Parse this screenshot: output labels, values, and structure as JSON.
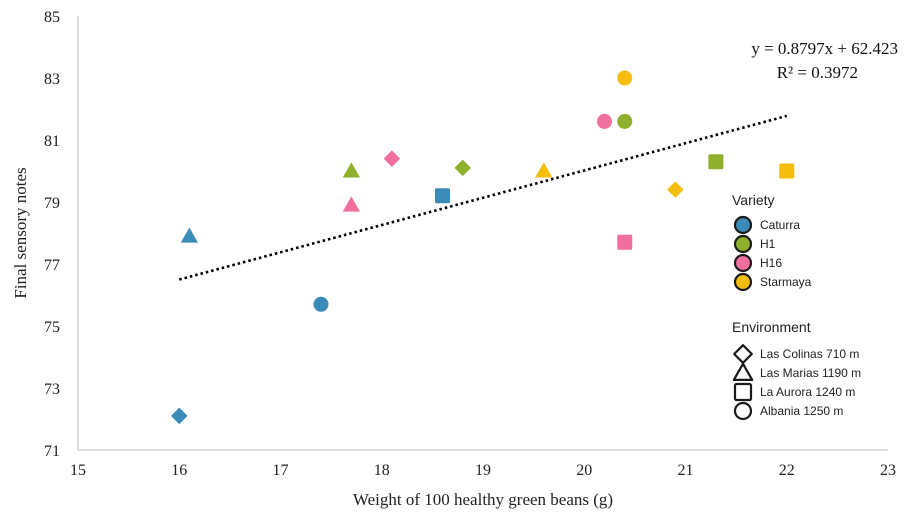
{
  "chart_data": {
    "type": "scatter",
    "xlabel": "Weight of 100 healthy green beans (g)",
    "ylabel": "Final sensory notes",
    "xlim": [
      15,
      23
    ],
    "ylim": [
      71,
      85
    ],
    "xticks": [
      15,
      16,
      17,
      18,
      19,
      20,
      21,
      22,
      23
    ],
    "yticks": [
      71,
      73,
      75,
      77,
      79,
      81,
      83,
      85
    ],
    "grid": false,
    "trendline": {
      "style": "dotted",
      "slope": 0.8797,
      "intercept": 62.423,
      "x_range": [
        16,
        22
      ],
      "equation_label": "y = 0.8797x + 62.423",
      "r2_label": "R² = 0.3972"
    },
    "varieties": [
      {
        "name": "Caturra",
        "color": "#3a8bb8"
      },
      {
        "name": "H1",
        "color": "#8fb02c"
      },
      {
        "name": "H16",
        "color": "#f06f9e"
      },
      {
        "name": "Starmaya",
        "color": "#f5be0f"
      }
    ],
    "environments": [
      {
        "name": "Las Colinas 710 m",
        "marker": "diamond"
      },
      {
        "name": "Las Marias 1190 m",
        "marker": "triangle"
      },
      {
        "name": "La Aurora 1240 m",
        "marker": "square"
      },
      {
        "name": "Albania 1250 m",
        "marker": "circle"
      }
    ],
    "legend_titles": {
      "variety": "Variety",
      "environment": "Environment"
    },
    "legend_placement": "right",
    "points": [
      {
        "x": 16.0,
        "y": 72.1,
        "variety": "Caturra",
        "environment": "Las Colinas 710 m"
      },
      {
        "x": 16.1,
        "y": 77.9,
        "variety": "Caturra",
        "environment": "Las Marias 1190 m"
      },
      {
        "x": 18.6,
        "y": 79.2,
        "variety": "Caturra",
        "environment": "La Aurora 1240 m"
      },
      {
        "x": 17.4,
        "y": 75.7,
        "variety": "Caturra",
        "environment": "Albania 1250 m"
      },
      {
        "x": 18.8,
        "y": 80.1,
        "variety": "H1",
        "environment": "Las Colinas 710 m"
      },
      {
        "x": 17.7,
        "y": 80.0,
        "variety": "H1",
        "environment": "Las Marias 1190 m"
      },
      {
        "x": 21.3,
        "y": 80.3,
        "variety": "H1",
        "environment": "La Aurora 1240 m"
      },
      {
        "x": 20.4,
        "y": 81.6,
        "variety": "H1",
        "environment": "Albania 1250 m"
      },
      {
        "x": 18.1,
        "y": 80.4,
        "variety": "H16",
        "environment": "Las Colinas 710 m"
      },
      {
        "x": 17.7,
        "y": 78.9,
        "variety": "H16",
        "environment": "Las Marias 1190 m"
      },
      {
        "x": 20.4,
        "y": 77.7,
        "variety": "H16",
        "environment": "La Aurora 1240 m"
      },
      {
        "x": 20.2,
        "y": 81.6,
        "variety": "H16",
        "environment": "Albania 1250 m"
      },
      {
        "x": 20.9,
        "y": 79.4,
        "variety": "Starmaya",
        "environment": "Las Colinas 710 m"
      },
      {
        "x": 19.6,
        "y": 80.0,
        "variety": "Starmaya",
        "environment": "Las Marias 1190 m"
      },
      {
        "x": 22.0,
        "y": 80.0,
        "variety": "Starmaya",
        "environment": "La Aurora 1240 m"
      },
      {
        "x": 20.4,
        "y": 83.0,
        "variety": "Starmaya",
        "environment": "Albania 1250 m"
      }
    ]
  }
}
